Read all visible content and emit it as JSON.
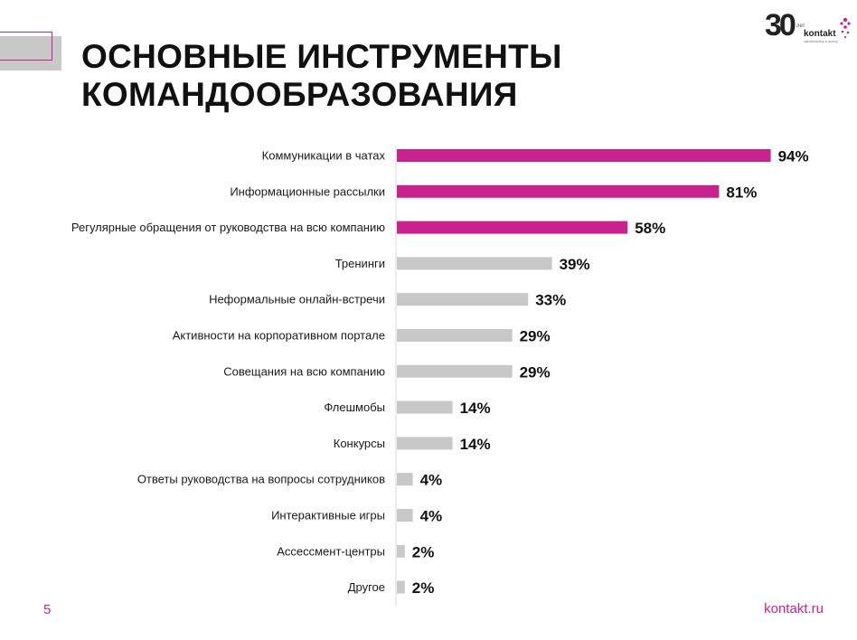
{
  "title": {
    "line1": "ОСНОВНЫЕ ИНСТРУМЕНТЫ",
    "line2": "КОМАНДООБРАЗОВАНИЯ"
  },
  "logo": {
    "number": "30",
    "years": "лет",
    "brand": "kontakt",
    "tagline": "сделай выбор в пользу"
  },
  "colors": {
    "accent": "#c8228c",
    "muted": "#c8c8c8",
    "text": "#111111"
  },
  "chart_data": {
    "type": "bar",
    "orientation": "horizontal",
    "value_suffix": "%",
    "categories": [
      "Коммуникации в чатах",
      "Информационные рассылки",
      "Регулярные обращения от руководства на всю компанию",
      "Тренинги",
      "Неформальные онлайн-встречи",
      "Активности на корпоративном портале",
      "Совещания на всю компанию",
      "Флешмобы",
      "Конкурсы",
      "Ответы руководства на вопросы сотрудников",
      "Интерактивные игры",
      "Ассессмент-центры",
      "Другое"
    ],
    "values": [
      94,
      81,
      58,
      39,
      33,
      29,
      29,
      14,
      14,
      4,
      4,
      2,
      2
    ],
    "highlight_count": 3,
    "xlim": [
      0,
      100
    ],
    "grid": false
  },
  "footer": {
    "page_number": "5",
    "url": "kontakt.ru"
  }
}
